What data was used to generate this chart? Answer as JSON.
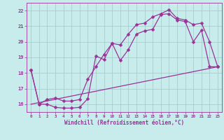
{
  "xlabel": "Windchill (Refroidissement éolien,°C)",
  "bg_color": "#c8ecec",
  "grid_color": "#a0c8c8",
  "line_color": "#993399",
  "xlim": [
    -0.5,
    23.5
  ],
  "ylim": [
    15.5,
    22.5
  ],
  "yticks": [
    16,
    17,
    18,
    19,
    20,
    21,
    22
  ],
  "xticks": [
    0,
    1,
    2,
    3,
    4,
    5,
    6,
    7,
    8,
    9,
    10,
    11,
    12,
    13,
    14,
    15,
    16,
    17,
    18,
    19,
    20,
    21,
    22,
    23
  ],
  "line1_x": [
    0,
    1,
    2,
    3,
    4,
    5,
    6,
    7,
    8,
    9,
    10,
    11,
    12,
    13,
    14,
    15,
    16,
    17,
    18,
    19,
    20,
    21,
    22,
    23
  ],
  "line1_y": [
    18.2,
    16.0,
    16.0,
    15.8,
    15.75,
    15.75,
    15.8,
    16.35,
    19.1,
    18.85,
    19.9,
    18.8,
    19.5,
    20.5,
    20.7,
    20.8,
    21.75,
    21.8,
    21.4,
    21.3,
    20.0,
    20.75,
    18.4,
    18.4
  ],
  "line2_x": [
    0,
    1,
    2,
    3,
    4,
    5,
    6,
    7,
    8,
    9,
    10,
    11,
    12,
    13,
    14,
    15,
    16,
    17,
    18,
    19,
    20,
    21,
    22,
    23
  ],
  "line2_y": [
    18.2,
    16.0,
    16.3,
    16.4,
    16.2,
    16.2,
    16.3,
    17.6,
    18.4,
    19.2,
    19.9,
    19.8,
    20.5,
    21.1,
    21.2,
    21.6,
    21.8,
    22.05,
    21.5,
    21.4,
    21.1,
    21.2,
    20.0,
    18.4
  ],
  "line3_x": [
    0,
    23
  ],
  "line3_y": [
    16.0,
    18.4
  ],
  "marker_size": 2.5,
  "linewidth": 0.9
}
